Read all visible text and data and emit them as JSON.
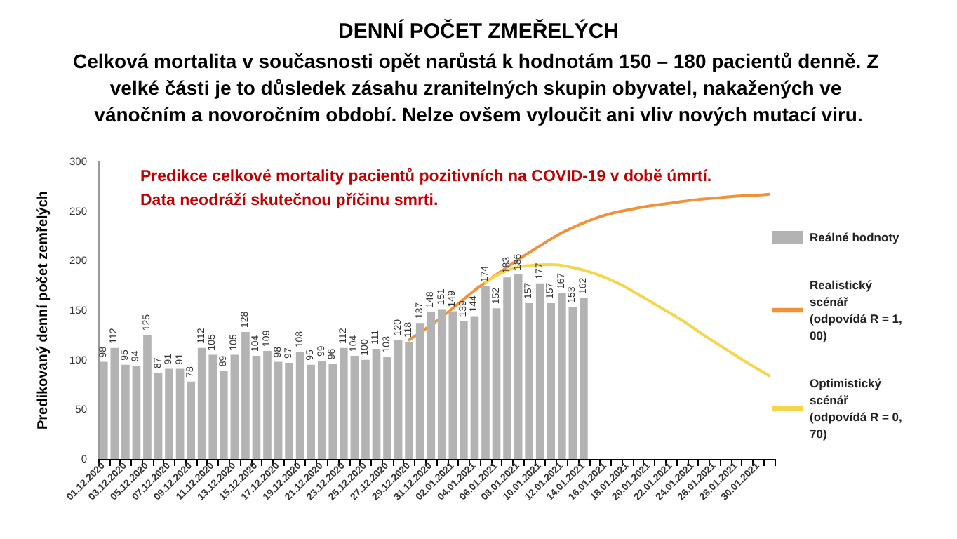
{
  "chart_data": {
    "type": "bar",
    "title": "DENNÍ POČET ZMEŘELÝCH",
    "subtitle": "Celková mortalita v současnosti opět narůstá k hodnotám 150 – 180 pacientů denně. Z velké části je to důsledek zásahu zranitelných skupin obyvatel, nakažených ve vánočním a novoročním období. Nelze ovšem vyloučit ani vliv nových mutací viru.",
    "ylabel": "Predikovaný denní počet zemřelých",
    "annotations": [
      "Predikce celkové mortality pacientů pozitivních na COVID-19 v době úmrtí.",
      "Data neodráží skutečnou příčinu smrti."
    ],
    "categories": [
      "01.12.2020",
      null,
      "03.12.2020",
      null,
      "05.12.2020",
      null,
      "07.12.2020",
      null,
      "09.12.2020",
      null,
      "11.12.2020",
      null,
      "13.12.2020",
      null,
      "15.12.2020",
      null,
      "17.12.2020",
      null,
      "19.12.2020",
      null,
      "21.12.2020",
      null,
      "23.12.2020",
      null,
      "25.12.2020",
      null,
      "27.12.2020",
      null,
      "29.12.2020",
      null,
      "31.12.2020",
      null,
      "02.01.2021",
      null,
      "04.01.2021",
      null,
      "06.01.2021",
      null,
      "08.01.2021",
      null,
      "10.01.2021",
      null,
      "12.01.2021",
      null,
      "14.01.2021",
      null,
      "16.01.2021",
      null,
      "18.01.2021",
      null,
      "20.01.2021",
      null,
      "22.01.2021",
      null,
      "24.01.2021",
      null,
      "26.01.2021",
      null,
      "28.01.2021",
      null,
      "30.01.2021",
      null
    ],
    "series": [
      {
        "name": "Reálné hodnoty",
        "color": "#b3b3b3",
        "values": [
          98,
          112,
          95,
          94,
          125,
          87,
          91,
          91,
          78,
          112,
          105,
          89,
          105,
          128,
          104,
          109,
          98,
          97,
          108,
          95,
          99,
          96,
          112,
          104,
          100,
          111,
          103,
          120,
          118,
          137,
          148,
          151,
          149,
          139,
          144,
          174,
          152,
          183,
          186,
          157,
          177,
          157,
          167,
          153,
          162,
          null,
          null,
          null,
          null,
          null,
          null,
          null,
          null,
          null,
          null,
          null,
          null,
          null,
          null,
          null,
          null,
          null
        ],
        "value_labels": [
          "98",
          "112",
          "95",
          "94",
          "125",
          "87",
          "91",
          "91",
          "78",
          "112",
          "105",
          "89",
          "105",
          "128",
          "104",
          "109",
          "98",
          "97",
          "108",
          "95",
          "99",
          "96",
          "112",
          "104",
          "100",
          "111",
          "103",
          "120",
          "118",
          "137",
          "148",
          "151",
          "149",
          "139",
          "144",
          "174",
          "152",
          "183",
          "186",
          "157",
          "177",
          "157",
          "167",
          "153",
          "162",
          null,
          null,
          null,
          null,
          null,
          null,
          null,
          null,
          null,
          null,
          null,
          null,
          null,
          null,
          null,
          null,
          null
        ]
      },
      {
        "name": "Realistický scénář (odpovídá R = 1,00)",
        "type": "line",
        "color": "#f0923a",
        "values": [
          null,
          null,
          null,
          null,
          null,
          null,
          null,
          null,
          null,
          null,
          null,
          null,
          null,
          null,
          null,
          null,
          null,
          null,
          null,
          null,
          null,
          null,
          null,
          null,
          null,
          null,
          null,
          null,
          120,
          null,
          135,
          null,
          152,
          null,
          170,
          178,
          186,
          null,
          201,
          null,
          215,
          null,
          228,
          null,
          238,
          null,
          246,
          null,
          251,
          null,
          255,
          null,
          258,
          null,
          261,
          null,
          263,
          null,
          265,
          null,
          266,
          267
        ]
      },
      {
        "name": "Optimistický scénář (odpovídá R = 0,70)",
        "type": "line",
        "color": "#f5d64a",
        "values": [
          null,
          null,
          null,
          null,
          null,
          null,
          null,
          null,
          null,
          null,
          null,
          null,
          null,
          null,
          null,
          null,
          null,
          null,
          null,
          null,
          null,
          null,
          null,
          null,
          null,
          null,
          null,
          null,
          null,
          null,
          null,
          null,
          null,
          null,
          null,
          178,
          null,
          190,
          null,
          195,
          null,
          196,
          null,
          193,
          null,
          187,
          null,
          178,
          null,
          166,
          null,
          153,
          null,
          140,
          null,
          125,
          null,
          111,
          null,
          97,
          null,
          84
        ]
      }
    ],
    "ylim": [
      0,
      300
    ],
    "yticks": [
      0,
      50,
      100,
      150,
      200,
      250,
      300
    ],
    "grid": false,
    "legend": "right",
    "marker": "none",
    "line_style": "solid"
  }
}
